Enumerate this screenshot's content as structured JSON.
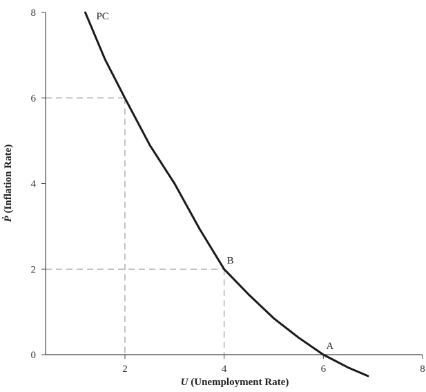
{
  "chart_data": {
    "type": "line",
    "title": "",
    "xlabel_var": "U",
    "xlabel_text": " (Unemployment Rate)",
    "ylabel_var": "Ṗ",
    "ylabel_text": " (Inflation Rate)",
    "xlim": [
      0.4,
      8
    ],
    "ylim": [
      0,
      8
    ],
    "x_ticks": [
      "2",
      "4",
      "6",
      "8"
    ],
    "y_ticks": [
      "0",
      "2",
      "4",
      "6",
      "8"
    ],
    "grid": false,
    "series": [
      {
        "name": "PC",
        "x": [
          1.2,
          1.6,
          2.0,
          2.5,
          3.0,
          3.5,
          4.0,
          4.5,
          5.0,
          5.5,
          6.0,
          6.5,
          6.9
        ],
        "y": [
          8.0,
          6.9,
          6.0,
          4.9,
          4.0,
          2.95,
          2.0,
          1.4,
          0.85,
          0.4,
          0.0,
          -0.3,
          -0.5
        ]
      }
    ],
    "points": [
      {
        "label": "B",
        "x": 4,
        "y": 2
      },
      {
        "label": "A",
        "x": 6,
        "y": 0
      }
    ],
    "reference_lines": [
      {
        "x": 2,
        "y": 6
      },
      {
        "x": 4,
        "y": 2
      }
    ]
  }
}
